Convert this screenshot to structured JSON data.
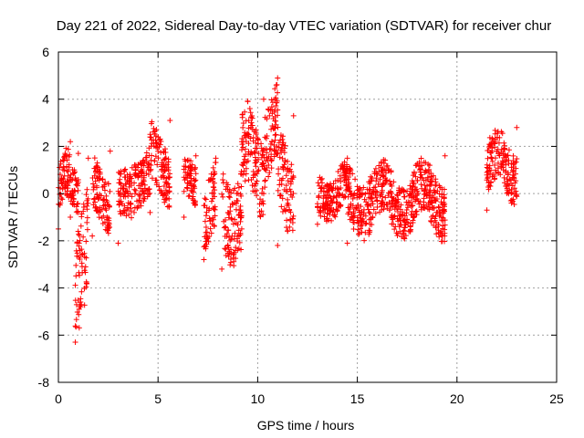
{
  "chart_data": {
    "type": "scatter",
    "title": "Day 221 of 2022, Sidereal Day-to-day VTEC variation (SDTVAR) for receiver chur",
    "xlabel": "GPS time / hours",
    "ylabel": "SDTVAR / TECUs",
    "xlim": [
      0,
      25
    ],
    "ylim": [
      -8,
      6
    ],
    "xticks": [
      "0",
      "5",
      "10",
      "15",
      "20",
      "25"
    ],
    "yticks": [
      "-8",
      "-6",
      "-4",
      "-2",
      "0",
      "2",
      "4",
      "6"
    ],
    "grid": true,
    "marker": "+",
    "color": "#ff0000",
    "clusters": [
      {
        "x": [
          0.0,
          0.6
        ],
        "y": [
          -1.5,
          2.2
        ]
      },
      {
        "x": [
          0.6,
          1.0
        ],
        "y": [
          -1.0,
          1.7
        ]
      },
      {
        "x": [
          0.85,
          1.5
        ],
        "y": [
          -6.3,
          1.5
        ]
      },
      {
        "x": [
          1.7,
          2.6
        ],
        "y": [
          -1.8,
          1.8
        ]
      },
      {
        "x": [
          3.0,
          3.7
        ],
        "y": [
          -2.1,
          1.1
        ]
      },
      {
        "x": [
          3.8,
          4.6
        ],
        "y": [
          -0.8,
          2.4
        ]
      },
      {
        "x": [
          4.6,
          5.6
        ],
        "y": [
          -0.8,
          3.1
        ]
      },
      {
        "x": [
          6.3,
          6.9
        ],
        "y": [
          -1.0,
          1.6
        ]
      },
      {
        "x": [
          7.3,
          7.9
        ],
        "y": [
          -2.8,
          1.5
        ]
      },
      {
        "x": [
          8.2,
          9.2
        ],
        "y": [
          -3.2,
          2.2
        ]
      },
      {
        "x": [
          9.2,
          10.3
        ],
        "y": [
          -1.5,
          4.0
        ]
      },
      {
        "x": [
          10.3,
          11.0
        ],
        "y": [
          0.0,
          4.9
        ]
      },
      {
        "x": [
          11.0,
          11.8
        ],
        "y": [
          -2.2,
          3.3
        ]
      },
      {
        "x": [
          13.0,
          14.5
        ],
        "y": [
          -1.3,
          1.5
        ]
      },
      {
        "x": [
          14.5,
          19.4
        ],
        "y": [
          -2.1,
          1.6
        ]
      },
      {
        "x": [
          21.5,
          23.0
        ],
        "y": [
          -0.7,
          2.8
        ]
      }
    ]
  }
}
